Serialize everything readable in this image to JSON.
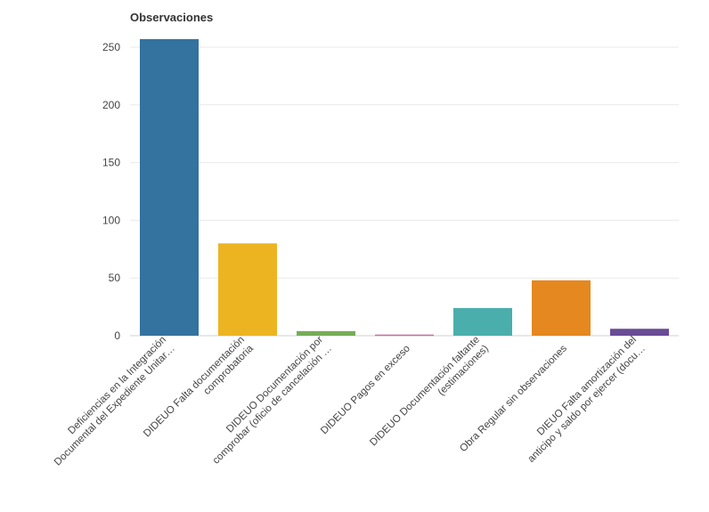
{
  "chart_data": {
    "type": "bar",
    "title": "Observaciones",
    "xlabel": "",
    "ylabel": "",
    "ylim": [
      0,
      260
    ],
    "yticks": [
      0,
      50,
      100,
      150,
      200,
      250
    ],
    "grid": true,
    "categories": [
      [
        "Deficiencias en la Integración",
        "Documental del Expediente Unitar…"
      ],
      [
        "DIDEUO Falta documentación",
        "comprobatoria"
      ],
      [
        "DIDEUO Documentación por",
        "comprobar (oficio de cancelación …"
      ],
      [
        "DIDEUO Pagos en exceso"
      ],
      [
        "DIDEUO Documentación faltante",
        "(estimaciones)"
      ],
      [
        "Obra Regular sin observaciones"
      ],
      [
        "DIEUO Falta amortización del",
        "anticipo y saldo por ejercer (docu…"
      ]
    ],
    "values": [
      257,
      80,
      4,
      1,
      24,
      48,
      6
    ],
    "colors": [
      "#34729f",
      "#edb422",
      "#75ac56",
      "#c86f9d",
      "#4aafac",
      "#e4881f",
      "#6a4b96"
    ]
  }
}
